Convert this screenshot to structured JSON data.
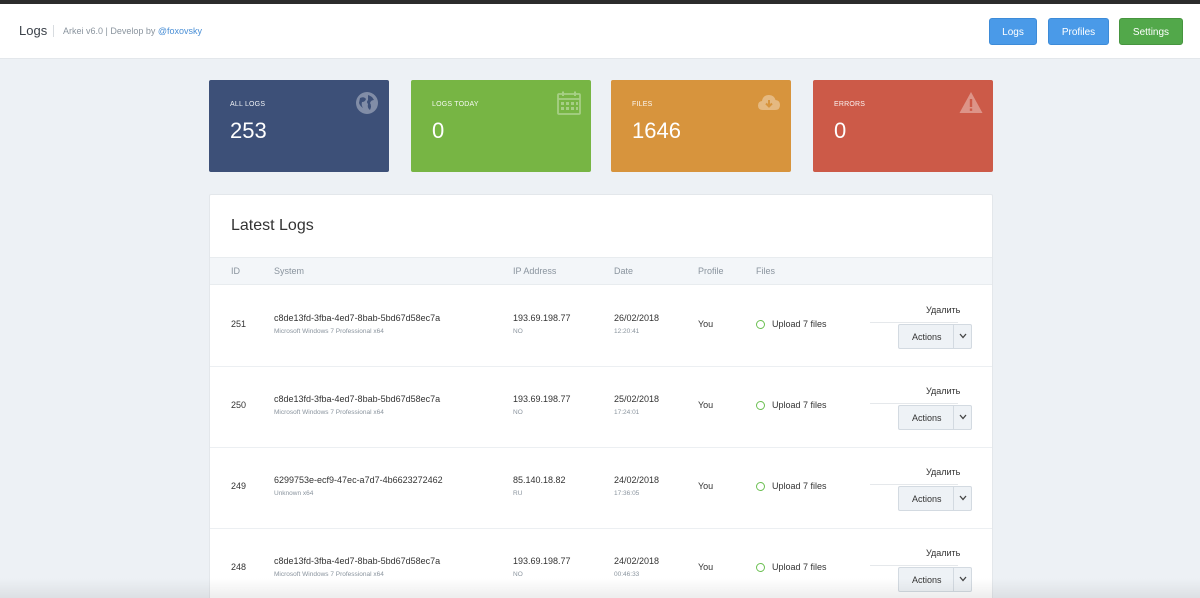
{
  "header": {
    "title": "Logs",
    "subtitle_prefix": "Arkei v6.0 | Develop by ",
    "subtitle_link": "@foxovsky",
    "buttons": {
      "logs": "Logs",
      "profiles": "Profiles",
      "settings": "Settings"
    }
  },
  "stats": [
    {
      "label": "ALL LOGS",
      "value": "253",
      "icon": "globe-icon",
      "color": "#3d5078"
    },
    {
      "label": "LOGS TODAY",
      "value": "0",
      "icon": "calendar-icon",
      "color": "#77b544"
    },
    {
      "label": "FILES",
      "value": "1646",
      "icon": "cloud-download-icon",
      "color": "#d7943d"
    },
    {
      "label": "ERRORS",
      "value": "0",
      "icon": "warning-icon",
      "color": "#cc5a48"
    }
  ],
  "panel": {
    "title": "Latest Logs",
    "columns": {
      "id": "ID",
      "system": "System",
      "ip": "IP Address",
      "date": "Date",
      "profile": "Profile",
      "files": "Files"
    }
  },
  "rows": [
    {
      "id": "251",
      "system": "c8de13fd-3fba-4ed7-8bab-5bd67d58ec7a",
      "os": "Microsoft Windows 7 Professional x64",
      "ip": "193.69.198.77",
      "country": "NO",
      "date": "26/02/2018",
      "time": "12:20:41",
      "profile": "You",
      "files": "Upload 7 files",
      "delete": "Удалить",
      "actions": "Actions"
    },
    {
      "id": "250",
      "system": "c8de13fd-3fba-4ed7-8bab-5bd67d58ec7a",
      "os": "Microsoft Windows 7 Professional x64",
      "ip": "193.69.198.77",
      "country": "NO",
      "date": "25/02/2018",
      "time": "17:24:01",
      "profile": "You",
      "files": "Upload 7 files",
      "delete": "Удалить",
      "actions": "Actions"
    },
    {
      "id": "249",
      "system": "6299753e-ecf9-47ec-a7d7-4b6623272462",
      "os": "Unknown x64",
      "ip": "85.140.18.82",
      "country": "RU",
      "date": "24/02/2018",
      "time": "17:36:05",
      "profile": "You",
      "files": "Upload 7 files",
      "delete": "Удалить",
      "actions": "Actions"
    },
    {
      "id": "248",
      "system": "c8de13fd-3fba-4ed7-8bab-5bd67d58ec7a",
      "os": "Microsoft Windows 7 Professional x64",
      "ip": "193.69.198.77",
      "country": "NO",
      "date": "24/02/2018",
      "time": "00:46:33",
      "profile": "You",
      "files": "Upload 7 files",
      "delete": "Удалить",
      "actions": "Actions"
    }
  ]
}
